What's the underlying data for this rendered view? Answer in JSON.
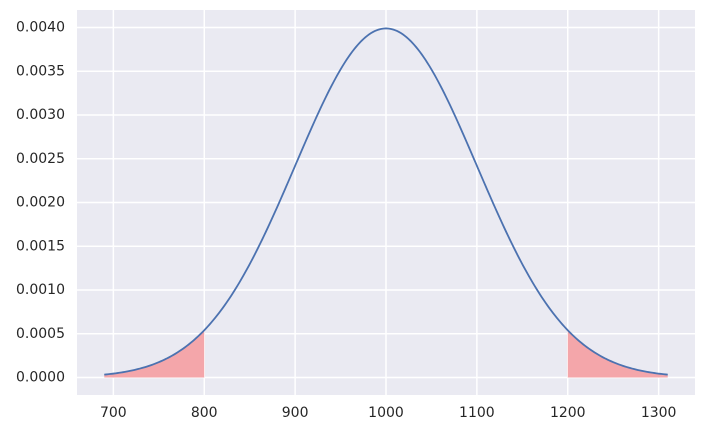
{
  "chart_data": {
    "type": "area",
    "title": "",
    "xlabel": "",
    "ylabel": "",
    "distribution": {
      "kind": "normal",
      "mean": 1000,
      "std": 100
    },
    "x_range": [
      690,
      1310
    ],
    "xlim": [
      660,
      1340
    ],
    "ylim": [
      -0.0002,
      0.0042
    ],
    "x_ticks": [
      700,
      800,
      900,
      1000,
      1100,
      1200,
      1300
    ],
    "x_tick_labels": [
      "700",
      "800",
      "900",
      "1000",
      "1100",
      "1200",
      "1300"
    ],
    "y_ticks": [
      0.0,
      0.0005,
      0.001,
      0.0015,
      0.002,
      0.0025,
      0.003,
      0.0035,
      0.004
    ],
    "y_tick_labels": [
      "0.0000",
      "0.0005",
      "0.0010",
      "0.0015",
      "0.0020",
      "0.0025",
      "0.0030",
      "0.0035",
      "0.0040"
    ],
    "shaded_regions": [
      {
        "x": [
          690,
          800
        ]
      },
      {
        "x": [
          1200,
          1310
        ]
      }
    ],
    "grid": true,
    "colors": {
      "background": "#EAEAF2",
      "grid": "#FFFFFF",
      "line": "#4C72B0",
      "shade": "#F4A6AA"
    }
  }
}
